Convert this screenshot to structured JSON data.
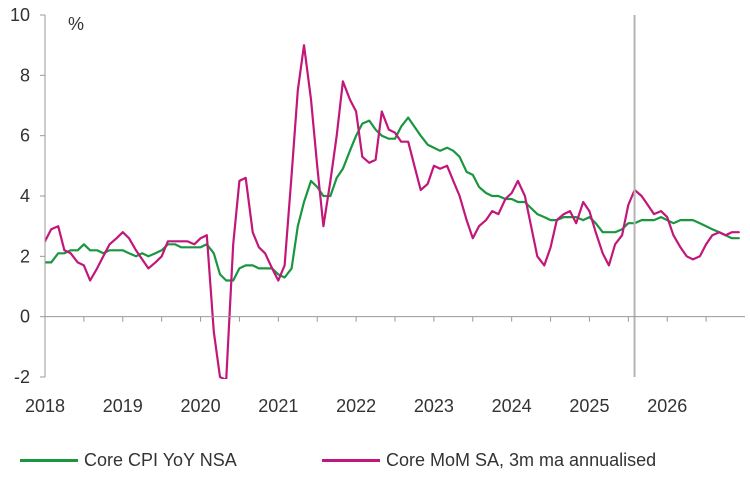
{
  "chart_data": {
    "type": "line",
    "title": "",
    "xlabel": "",
    "ylabel": "%",
    "xlim": [
      2018.0,
      2027.0
    ],
    "ylim": [
      -2,
      10
    ],
    "yticks": [
      "-2",
      "0",
      "2",
      "4",
      "6",
      "8",
      "10"
    ],
    "xticks": [
      "2018",
      "2019",
      "2020",
      "2021",
      "2022",
      "2023",
      "2024",
      "2025",
      "2026"
    ],
    "forecast_start": 2025.58,
    "grid": false,
    "legend_position": "bottom",
    "series": [
      {
        "name": "Core CPI YoY NSA",
        "color": "#1a9641",
        "x": [
          2018.0,
          2018.08,
          2018.17,
          2018.25,
          2018.33,
          2018.42,
          2018.5,
          2018.58,
          2018.67,
          2018.75,
          2018.83,
          2018.92,
          2019.0,
          2019.08,
          2019.17,
          2019.25,
          2019.33,
          2019.42,
          2019.5,
          2019.58,
          2019.67,
          2019.75,
          2019.83,
          2019.92,
          2020.0,
          2020.08,
          2020.17,
          2020.25,
          2020.33,
          2020.42,
          2020.5,
          2020.58,
          2020.67,
          2020.75,
          2020.83,
          2020.92,
          2021.0,
          2021.08,
          2021.17,
          2021.25,
          2021.33,
          2021.42,
          2021.5,
          2021.58,
          2021.67,
          2021.75,
          2021.83,
          2021.92,
          2022.0,
          2022.08,
          2022.17,
          2022.25,
          2022.33,
          2022.42,
          2022.5,
          2022.58,
          2022.67,
          2022.75,
          2022.83,
          2022.92,
          2023.0,
          2023.08,
          2023.17,
          2023.25,
          2023.33,
          2023.42,
          2023.5,
          2023.58,
          2023.67,
          2023.75,
          2023.83,
          2023.92,
          2024.0,
          2024.08,
          2024.17,
          2024.25,
          2024.33,
          2024.42,
          2024.5,
          2024.58,
          2024.67,
          2024.75,
          2024.83,
          2024.92,
          2025.0,
          2025.08,
          2025.17,
          2025.25,
          2025.33,
          2025.42,
          2025.5,
          2025.58,
          2025.67,
          2025.75,
          2025.83,
          2025.92,
          2026.0,
          2026.08,
          2026.17,
          2026.25,
          2026.33,
          2026.42,
          2026.5,
          2026.58,
          2026.67,
          2026.75,
          2026.83,
          2026.92
        ],
        "values": [
          1.8,
          1.8,
          2.1,
          2.1,
          2.2,
          2.2,
          2.4,
          2.2,
          2.2,
          2.1,
          2.2,
          2.2,
          2.2,
          2.1,
          2.0,
          2.1,
          2.0,
          2.1,
          2.2,
          2.4,
          2.4,
          2.3,
          2.3,
          2.3,
          2.3,
          2.4,
          2.1,
          1.4,
          1.2,
          1.2,
          1.6,
          1.7,
          1.7,
          1.6,
          1.6,
          1.6,
          1.4,
          1.3,
          1.6,
          3.0,
          3.8,
          4.5,
          4.3,
          4.0,
          4.0,
          4.6,
          4.9,
          5.5,
          6.0,
          6.4,
          6.5,
          6.2,
          6.0,
          5.9,
          5.9,
          6.3,
          6.6,
          6.3,
          6.0,
          5.7,
          5.6,
          5.5,
          5.6,
          5.5,
          5.3,
          4.8,
          4.7,
          4.3,
          4.1,
          4.0,
          4.0,
          3.9,
          3.9,
          3.8,
          3.8,
          3.6,
          3.4,
          3.3,
          3.2,
          3.2,
          3.3,
          3.3,
          3.3,
          3.2,
          3.3,
          3.1,
          2.8,
          2.8,
          2.8,
          2.9,
          3.1,
          3.1,
          3.2,
          3.2,
          3.2,
          3.3,
          3.2,
          3.1,
          3.2,
          3.2,
          3.2,
          3.1,
          3.0,
          2.9,
          2.8,
          2.7,
          2.6,
          2.6
        ]
      },
      {
        "name": "Core MoM SA, 3m ma annualised",
        "color": "#c2177a",
        "x": [
          2018.0,
          2018.08,
          2018.17,
          2018.25,
          2018.33,
          2018.42,
          2018.5,
          2018.58,
          2018.67,
          2018.75,
          2018.83,
          2018.92,
          2019.0,
          2019.08,
          2019.17,
          2019.25,
          2019.33,
          2019.42,
          2019.5,
          2019.58,
          2019.67,
          2019.75,
          2019.83,
          2019.92,
          2020.0,
          2020.08,
          2020.17,
          2020.25,
          2020.33,
          2020.42,
          2020.5,
          2020.58,
          2020.67,
          2020.75,
          2020.83,
          2020.92,
          2021.0,
          2021.08,
          2021.17,
          2021.25,
          2021.33,
          2021.42,
          2021.5,
          2021.58,
          2021.67,
          2021.75,
          2021.83,
          2021.92,
          2022.0,
          2022.08,
          2022.17,
          2022.25,
          2022.33,
          2022.42,
          2022.5,
          2022.58,
          2022.67,
          2022.75,
          2022.83,
          2022.92,
          2023.0,
          2023.08,
          2023.17,
          2023.25,
          2023.33,
          2023.42,
          2023.5,
          2023.58,
          2023.67,
          2023.75,
          2023.83,
          2023.92,
          2024.0,
          2024.08,
          2024.17,
          2024.25,
          2024.33,
          2024.42,
          2024.5,
          2024.58,
          2024.67,
          2024.75,
          2024.83,
          2024.92,
          2025.0,
          2025.08,
          2025.17,
          2025.25,
          2025.33,
          2025.42,
          2025.5,
          2025.58,
          2025.67,
          2025.75,
          2025.83,
          2025.92,
          2026.0,
          2026.08,
          2026.17,
          2026.25,
          2026.33,
          2026.42,
          2026.5,
          2026.58,
          2026.67,
          2026.75,
          2026.83,
          2026.92
        ],
        "values": [
          2.5,
          2.9,
          3.0,
          2.2,
          2.1,
          1.8,
          1.7,
          1.2,
          1.6,
          2.0,
          2.4,
          2.6,
          2.8,
          2.6,
          2.2,
          1.9,
          1.6,
          1.8,
          2.0,
          2.5,
          2.5,
          2.5,
          2.5,
          2.4,
          2.6,
          2.7,
          -0.5,
          -2.0,
          -2.1,
          2.4,
          4.5,
          4.6,
          2.8,
          2.3,
          2.1,
          1.6,
          1.2,
          1.7,
          4.7,
          7.5,
          9.0,
          7.2,
          5.0,
          3.0,
          4.5,
          6.0,
          7.8,
          7.2,
          6.8,
          5.3,
          5.1,
          5.2,
          6.8,
          6.2,
          6.1,
          5.8,
          5.8,
          5.0,
          4.2,
          4.4,
          5.0,
          4.9,
          5.0,
          4.5,
          4.0,
          3.2,
          2.6,
          3.0,
          3.2,
          3.5,
          3.4,
          3.9,
          4.1,
          4.5,
          4.0,
          3.0,
          2.0,
          1.7,
          2.3,
          3.2,
          3.4,
          3.5,
          3.1,
          3.8,
          3.5,
          2.8,
          2.1,
          1.7,
          2.4,
          2.7,
          3.7,
          4.2,
          4.0,
          3.7,
          3.4,
          3.5,
          3.3,
          2.7,
          2.3,
          2.0,
          1.9,
          2.0,
          2.4,
          2.7,
          2.8,
          2.7,
          2.8,
          2.8
        ]
      }
    ]
  }
}
